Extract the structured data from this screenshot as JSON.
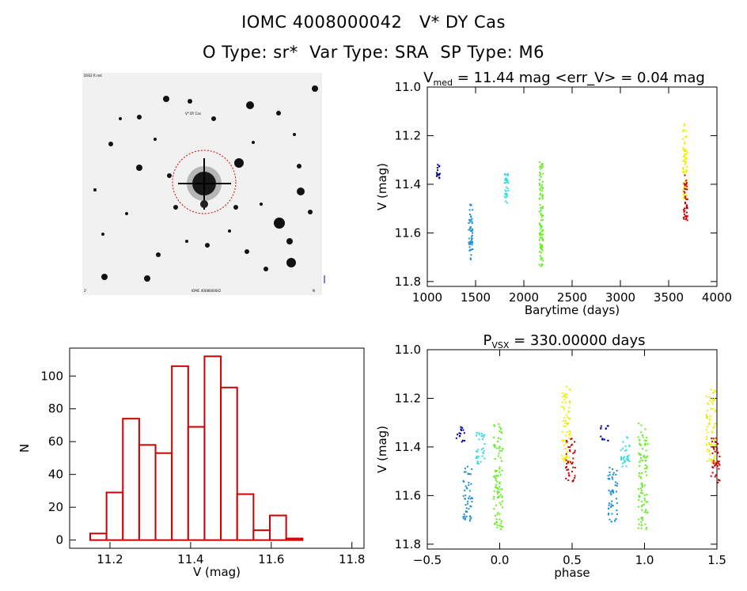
{
  "header": {
    "title_line1": "IOMC 4008000042   V* DY Cas",
    "title_line2": "O Type: sr*  Var Type: SRA  SP Type: M6"
  },
  "image_panel": {
    "top_left_label": "DSS2 R red",
    "target_label": "V* DY Cas",
    "bottom_left_label": "2'",
    "bottom_mid_label": "IOMC 4008000042",
    "bottom_right_label": "N"
  },
  "colors": {
    "histogram": "#cc0000",
    "seasons": [
      "#000099",
      "#1a8fd9",
      "#33dddd",
      "#66ee22",
      "#eeee00",
      "#cc0000"
    ]
  },
  "chart_data": [
    {
      "id": "lightcurve",
      "type": "scatter",
      "title": "V_med = 11.44 mag <err_V> = 0.04 mag",
      "title_parts": {
        "main": "V",
        "sub": "med",
        "rest": " = 11.44 mag <err_V> = 0.04 mag"
      },
      "xlabel": "Barytime (days)",
      "ylabel": "V (mag)",
      "xlim": [
        1000,
        4000
      ],
      "ylim": [
        11.82,
        11.0
      ],
      "xticks": [
        1000,
        1500,
        2000,
        2500,
        3000,
        3500,
        4000
      ],
      "xtick_labels": [
        "1000",
        "1500",
        "2000",
        "2500",
        "3000",
        "3500",
        "4000"
      ],
      "yticks": [
        11.0,
        11.2,
        11.4,
        11.6,
        11.8
      ],
      "ytick_labels": [
        "11.0",
        "11.2",
        "11.4",
        "11.6",
        "11.8"
      ],
      "series": [
        {
          "color": "#000099",
          "x": 1110,
          "ymin": 11.31,
          "ymax": 11.38
        },
        {
          "color": "#1a8fd9",
          "x": 1450,
          "ymin": 11.48,
          "ymax": 11.71
        },
        {
          "color": "#33dddd",
          "x": 1820,
          "ymin": 11.34,
          "ymax": 11.48
        },
        {
          "color": "#66ee22",
          "x": 2180,
          "ymin": 11.3,
          "ymax": 11.74
        },
        {
          "color": "#eeee00",
          "x": 3670,
          "ymin": 11.15,
          "ymax": 11.47
        },
        {
          "color": "#cc0000",
          "x": 3675,
          "ymin": 11.36,
          "ymax": 11.55
        }
      ]
    },
    {
      "id": "histogram",
      "type": "bar",
      "xlabel": "V (mag)",
      "ylabel": "N",
      "xlim": [
        11.1,
        11.83
      ],
      "ylim": [
        -5,
        117
      ],
      "xticks": [
        11.2,
        11.4,
        11.6,
        11.8
      ],
      "xtick_labels": [
        "11.2",
        "11.4",
        "11.6",
        "11.8"
      ],
      "yticks": [
        0,
        20,
        40,
        60,
        80,
        100
      ],
      "ytick_labels": [
        "0",
        "20",
        "40",
        "60",
        "80",
        "100"
      ],
      "bin_start": 11.151,
      "bin_width": 0.0405,
      "values": [
        4,
        29,
        74,
        58,
        53,
        106,
        69,
        112,
        93,
        28,
        6,
        15,
        1
      ]
    },
    {
      "id": "phased",
      "type": "scatter",
      "title": "P_VSX = 330.00000 days",
      "title_parts": {
        "main": "P",
        "sub": "VSX",
        "rest": " = 330.00000 days"
      },
      "xlabel": "phase",
      "ylabel": "V (mag)",
      "xlim": [
        -0.5,
        1.5
      ],
      "ylim": [
        11.82,
        11.0
      ],
      "xticks": [
        -0.5,
        0.0,
        0.5,
        1.0,
        1.5
      ],
      "xtick_labels": [
        "−0.5",
        "0.0",
        "0.5",
        "1.0",
        "1.5"
      ],
      "yticks": [
        11.0,
        11.2,
        11.4,
        11.6,
        11.8
      ],
      "ytick_labels": [
        "11.0",
        "11.2",
        "11.4",
        "11.6",
        "11.8"
      ],
      "series": [
        {
          "color": "#000099",
          "phase": -0.27,
          "ymin": 11.31,
          "ymax": 11.38
        },
        {
          "color": "#1a8fd9",
          "phase": -0.22,
          "ymin": 11.48,
          "ymax": 11.71
        },
        {
          "color": "#33dddd",
          "phase": -0.13,
          "ymin": 11.34,
          "ymax": 11.48
        },
        {
          "color": "#66ee22",
          "phase": -0.01,
          "ymin": 11.3,
          "ymax": 11.74
        },
        {
          "color": "#eeee00",
          "phase": 0.46,
          "ymin": 11.15,
          "ymax": 11.47
        },
        {
          "color": "#cc0000",
          "phase": 0.49,
          "ymin": 11.36,
          "ymax": 11.55
        }
      ]
    }
  ]
}
